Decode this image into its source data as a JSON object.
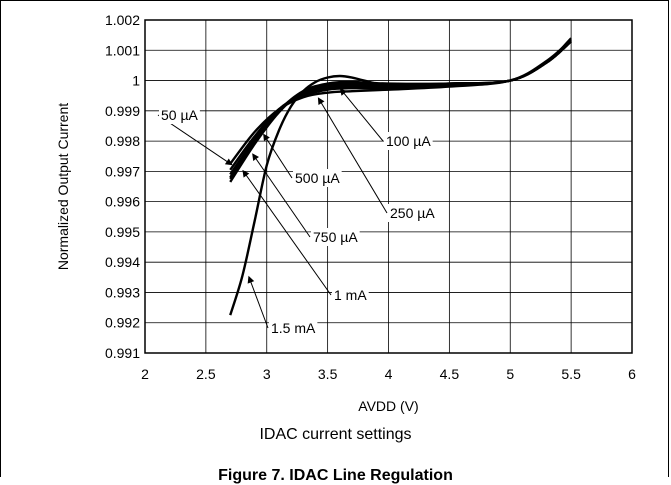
{
  "chart_data": {
    "type": "line",
    "title": "",
    "xlabel": "AVDD (V)",
    "ylabel": "Normalized Output Current",
    "subtitle": "IDAC current settings",
    "figure_caption": "Figure 7. IDAC Line Regulation",
    "xlim": [
      2,
      6
    ],
    "ylim": [
      0.991,
      1.002
    ],
    "grid": true,
    "x_ticks": [
      "2",
      "2.5",
      "3",
      "3.5",
      "4",
      "4.5",
      "5",
      "5.5",
      "6"
    ],
    "y_ticks": [
      "1.002",
      "1.001",
      "1",
      "0.999",
      "0.998",
      "0.997",
      "0.996",
      "0.995",
      "0.994",
      "0.993",
      "0.992",
      "0.991"
    ],
    "series": [
      {
        "name": "50 µA",
        "x": [
          2.7,
          2.9,
          3.1,
          3.3,
          3.5,
          3.7,
          4.0,
          4.5,
          5.0,
          5.3,
          5.5
        ],
        "values": [
          0.99725,
          0.9983,
          0.99905,
          0.99945,
          0.9996,
          0.99965,
          0.9997,
          0.9998,
          1.0,
          1.00065,
          1.00135
        ]
      },
      {
        "name": "100 µA",
        "x": [
          2.7,
          2.9,
          3.1,
          3.3,
          3.5,
          3.7,
          4.0,
          4.5,
          5.0,
          5.3,
          5.5
        ],
        "values": [
          0.99705,
          0.99815,
          0.99905,
          0.9995,
          0.9997,
          0.99975,
          0.99975,
          0.99985,
          1.0,
          1.0006,
          1.0013
        ]
      },
      {
        "name": "250 µA",
        "x": [
          2.7,
          2.9,
          3.1,
          3.3,
          3.5,
          3.7,
          4.0,
          4.5,
          5.0,
          5.3,
          5.5
        ],
        "values": [
          0.9969,
          0.99805,
          0.99905,
          0.99955,
          0.99975,
          0.9998,
          0.9998,
          0.99985,
          1.0,
          1.0006,
          1.0013
        ]
      },
      {
        "name": "500 µA",
        "x": [
          2.7,
          2.9,
          3.1,
          3.3,
          3.5,
          3.7,
          4.0,
          4.5,
          5.0,
          5.3,
          5.5
        ],
        "values": [
          0.9968,
          0.998,
          0.999,
          0.9996,
          0.9998,
          0.99985,
          0.99985,
          0.9999,
          1.0,
          1.0006,
          1.0013
        ]
      },
      {
        "name": "750 µA",
        "x": [
          2.7,
          2.9,
          3.1,
          3.3,
          3.5,
          3.7,
          4.0,
          4.5,
          5.0,
          5.3,
          5.5
        ],
        "values": [
          0.99675,
          0.99795,
          0.999,
          0.99965,
          0.99985,
          0.9999,
          0.99985,
          0.9999,
          1.0,
          1.0006,
          1.0013
        ]
      },
      {
        "name": "1 mA",
        "x": [
          2.7,
          2.9,
          3.1,
          3.3,
          3.5,
          3.7,
          4.0,
          4.5,
          5.0,
          5.3,
          5.5
        ],
        "values": [
          0.99665,
          0.9979,
          0.99895,
          0.99965,
          0.9999,
          0.99995,
          0.9999,
          0.9999,
          1.0,
          1.0006,
          1.0013
        ]
      },
      {
        "name": "1.5 mA",
        "x": [
          2.7,
          2.8,
          2.9,
          3.0,
          3.1,
          3.2,
          3.3,
          3.4,
          3.5,
          3.6,
          3.7,
          3.8,
          4.0,
          4.5,
          5.0,
          5.3,
          5.5
        ],
        "values": [
          0.99225,
          0.99355,
          0.99535,
          0.9972,
          0.99835,
          0.99915,
          0.99965,
          0.99995,
          1.0001,
          1.00015,
          1.0001,
          1.0,
          0.99985,
          0.99985,
          1.0,
          1.0006,
          1.0014
        ]
      }
    ],
    "annotations": [
      {
        "text": "50 µA",
        "series": "50 µA",
        "at_x": 2.72,
        "at_y": 0.9972
      },
      {
        "text": "100 µA",
        "series": "100 µA",
        "at_x": 3.6,
        "at_y": 0.99975
      },
      {
        "text": "500 µA",
        "series": "500 µA",
        "at_x": 2.97,
        "at_y": 0.99825
      },
      {
        "text": "250 µA",
        "series": "250 µA",
        "at_x": 3.42,
        "at_y": 0.99945
      },
      {
        "text": "750 µA",
        "series": "750 µA",
        "at_x": 2.88,
        "at_y": 0.9976
      },
      {
        "text": "1 mA",
        "series": "1 mA",
        "at_x": 2.8,
        "at_y": 0.99705
      },
      {
        "text": "1.5 mA",
        "series": "1.5 mA",
        "at_x": 2.85,
        "at_y": 0.99355
      }
    ]
  }
}
